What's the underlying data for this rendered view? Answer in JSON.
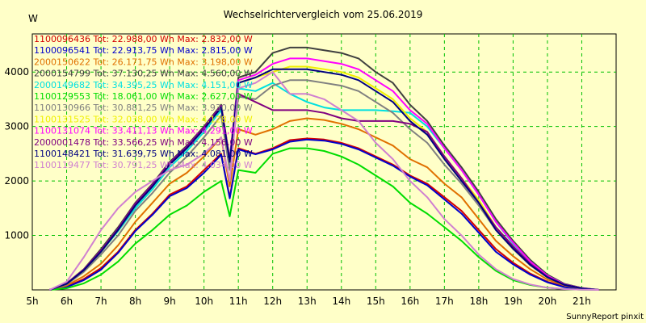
{
  "chart_data": {
    "type": "line",
    "title": "Wechselrichtervergleich vom 25.06.2019",
    "ylabel": "W",
    "xlabel": "",
    "footer": "SunnyReport pinxit",
    "ylim": [
      0,
      4700
    ],
    "xlim": [
      5,
      22
    ],
    "yticks": [
      1000,
      2000,
      3000,
      4000
    ],
    "ytick_labels": [
      "1000",
      "2000",
      "3000",
      "4000"
    ],
    "xticks": [
      5,
      6,
      7,
      8,
      9,
      10,
      11,
      12,
      13,
      14,
      15,
      16,
      17,
      18,
      19,
      20,
      21
    ],
    "xtick_labels": [
      "5h",
      "6h",
      "7h",
      "8h",
      "9h",
      "10h",
      "11h",
      "12h",
      "13h",
      "14h",
      "15h",
      "16h",
      "17h",
      "18h",
      "19h",
      "20h",
      "21h"
    ],
    "grid": true,
    "legend_position": "top-left",
    "x": [
      5.5,
      6,
      6.5,
      7,
      7.5,
      8,
      8.5,
      9,
      9.5,
      10,
      10.5,
      10.75,
      11,
      11.5,
      12,
      12.5,
      13,
      13.5,
      14,
      14.5,
      15,
      15.5,
      16,
      16.5,
      17,
      17.5,
      18,
      18.5,
      19,
      19.5,
      20,
      20.5,
      21,
      21.5
    ],
    "series": [
      {
        "name": "1100096436",
        "total": "22.988,00",
        "max": "2.832,00",
        "color": "#d40000",
        "values": [
          0,
          60,
          200,
          400,
          700,
          1100,
          1400,
          1750,
          1900,
          2200,
          2500,
          1700,
          2600,
          2500,
          2600,
          2750,
          2780,
          2760,
          2700,
          2600,
          2450,
          2300,
          2100,
          1950,
          1700,
          1450,
          1100,
          750,
          500,
          300,
          150,
          60,
          20,
          0
        ]
      },
      {
        "name": "1100096541",
        "total": "22.913,75",
        "max": "2.815,00",
        "color": "#0000cc",
        "values": [
          0,
          50,
          180,
          370,
          680,
          1080,
          1380,
          1720,
          1870,
          2150,
          2480,
          1680,
          2580,
          2490,
          2580,
          2720,
          2760,
          2740,
          2680,
          2580,
          2430,
          2280,
          2080,
          1920,
          1660,
          1400,
          1050,
          700,
          470,
          280,
          140,
          50,
          15,
          0
        ]
      },
      {
        "name": "2000150622",
        "total": "26.171,75",
        "max": "3.198,00",
        "color": "#e07000",
        "values": [
          0,
          80,
          250,
          480,
          820,
          1250,
          1600,
          1950,
          2150,
          2450,
          2800,
          1900,
          2950,
          2850,
          2950,
          3100,
          3150,
          3120,
          3050,
          2950,
          2800,
          2650,
          2400,
          2250,
          1950,
          1700,
          1300,
          900,
          620,
          380,
          190,
          80,
          25,
          0
        ]
      },
      {
        "name": "2000154799",
        "total": "37.130,25",
        "max": "4.560,00",
        "color": "#404040",
        "values": [
          0,
          120,
          380,
          750,
          1150,
          1600,
          1950,
          2350,
          2650,
          3000,
          3400,
          2400,
          3900,
          4000,
          4350,
          4450,
          4450,
          4400,
          4350,
          4250,
          4000,
          3800,
          3400,
          3100,
          2650,
          2250,
          1800,
          1300,
          900,
          550,
          280,
          110,
          35,
          0
        ]
      },
      {
        "name": "2000149682",
        "total": "34.395,25",
        "max": "4.151,00",
        "color": "#00e0e0",
        "values": [
          0,
          110,
          350,
          700,
          1080,
          1500,
          1850,
          2250,
          2550,
          2900,
          3300,
          2300,
          3700,
          3650,
          3800,
          3600,
          3450,
          3350,
          3300,
          3300,
          3300,
          3280,
          3250,
          3000,
          2600,
          2200,
          1750,
          1250,
          850,
          520,
          260,
          100,
          30,
          0
        ]
      },
      {
        "name": "1100129553",
        "total": "18.061,00",
        "max": "2.627,00",
        "color": "#00dd00",
        "values": [
          0,
          30,
          120,
          280,
          520,
          850,
          1100,
          1380,
          1550,
          1800,
          2000,
          1350,
          2200,
          2150,
          2500,
          2600,
          2600,
          2550,
          2450,
          2300,
          2100,
          1900,
          1600,
          1400,
          1150,
          900,
          600,
          350,
          180,
          90,
          40,
          15,
          5,
          0
        ]
      },
      {
        "name": "1100130966",
        "total": "30.881,25",
        "max": "3.930,00",
        "color": "#808080",
        "values": [
          0,
          100,
          330,
          650,
          1000,
          1450,
          1780,
          2150,
          2450,
          2800,
          3200,
          2200,
          3550,
          3500,
          3750,
          3850,
          3850,
          3800,
          3750,
          3650,
          3450,
          3250,
          2950,
          2700,
          2300,
          1950,
          1550,
          1100,
          750,
          450,
          230,
          90,
          30,
          0
        ]
      },
      {
        "name": "1100131525",
        "total": "32.038,00",
        "max": "4.128,00",
        "color": "#f0f000",
        "values": [
          0,
          110,
          360,
          700,
          1100,
          1550,
          1900,
          2300,
          2600,
          2950,
          3350,
          2350,
          3800,
          3900,
          4000,
          4100,
          4100,
          4050,
          4000,
          3900,
          3700,
          3500,
          3150,
          2900,
          2450,
          2050,
          1650,
          1150,
          800,
          480,
          240,
          95,
          30,
          0
        ]
      },
      {
        "name": "1100131074",
        "total": "33.411,13",
        "max": "4.291,00",
        "color": "#ff00ff",
        "values": [
          0,
          115,
          370,
          720,
          1120,
          1580,
          1930,
          2330,
          2630,
          2980,
          3380,
          2380,
          3850,
          3950,
          4150,
          4250,
          4250,
          4200,
          4150,
          4050,
          3850,
          3650,
          3300,
          3050,
          2600,
          2200,
          1750,
          1250,
          870,
          520,
          260,
          100,
          32,
          0
        ]
      },
      {
        "name": "2000001478",
        "total": "33.566,25",
        "max": "4.156,00",
        "color": "#800080",
        "values": [
          0,
          115,
          370,
          720,
          1120,
          1580,
          1930,
          2330,
          2630,
          2980,
          3380,
          2380,
          3600,
          3450,
          3300,
          3300,
          3300,
          3250,
          3150,
          3100,
          3100,
          3100,
          3050,
          2900,
          2450,
          2050,
          1600,
          1150,
          800,
          480,
          240,
          95,
          30,
          0
        ]
      },
      {
        "name": "1100148421",
        "total": "31.639,75",
        "max": "4.081,00",
        "color": "#000080",
        "values": [
          0,
          110,
          360,
          700,
          1100,
          1550,
          1900,
          2300,
          2600,
          2950,
          3350,
          2350,
          3800,
          3900,
          4050,
          4050,
          4050,
          4000,
          3950,
          3850,
          3650,
          3450,
          3100,
          2850,
          2400,
          2000,
          1600,
          1100,
          760,
          460,
          230,
          90,
          28,
          0
        ]
      },
      {
        "name": "1100119477",
        "total": "30.791,25",
        "max": "4.034,00",
        "color": "#d080d0",
        "values": [
          0,
          150,
          600,
          1100,
          1500,
          1800,
          2000,
          2200,
          2300,
          2500,
          2800,
          2000,
          3700,
          3800,
          4000,
          3600,
          3600,
          3500,
          3300,
          3100,
          2700,
          2400,
          2000,
          1700,
          1300,
          1000,
          650,
          380,
          200,
          100,
          40,
          15,
          5,
          0
        ]
      }
    ]
  }
}
